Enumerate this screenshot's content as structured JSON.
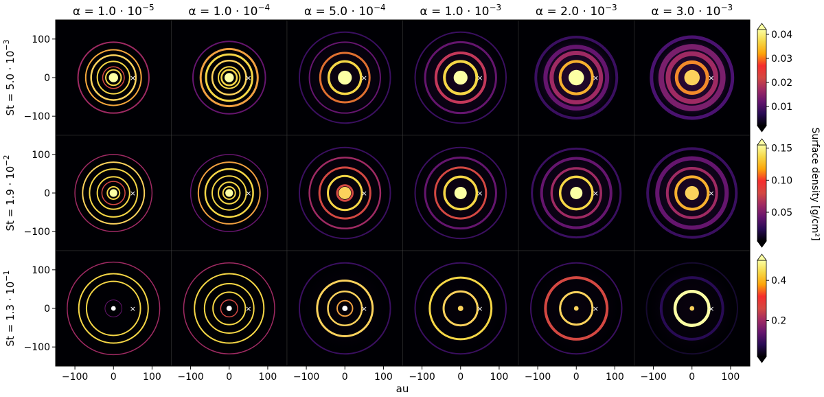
{
  "figure": {
    "column_titles": [
      {
        "base": "α = 1.0 · 10",
        "exp": "−5"
      },
      {
        "base": "α = 1.0 · 10",
        "exp": "−4"
      },
      {
        "base": "α = 5.0 · 10",
        "exp": "−4"
      },
      {
        "base": "α = 1.0 · 10",
        "exp": "−3"
      },
      {
        "base": "α = 2.0 · 10",
        "exp": "−3"
      },
      {
        "base": "α = 3.0 · 10",
        "exp": "−3"
      }
    ],
    "row_titles": [
      {
        "base": "St = 5.0 · 10",
        "exp": "−3"
      },
      {
        "base": "St = 1.9 · 10",
        "exp": "−2"
      },
      {
        "base": "St = 1.3 · 10",
        "exp": "−1"
      }
    ],
    "xlabel": "au",
    "colorbar_label": "Surface density [g/cm²]",
    "planet_marker": "×",
    "colormap": [
      "#000004",
      "#280b54",
      "#65156e",
      "#9f2a63",
      "#d44842",
      "#f52d2d",
      "#fca50a",
      "#f6d746",
      "#fcffa4"
    ]
  },
  "chart_data": {
    "type": "heatmap",
    "description_units": "disk dust surface density maps, axes in au",
    "x_ticks": [
      "−100",
      "0",
      "100"
    ],
    "y_ticks": [
      "100",
      "0",
      "−100"
    ],
    "xlim": [
      -150,
      150
    ],
    "ylim": [
      -150,
      150
    ],
    "planet_position_au": [
      50,
      0
    ],
    "colorbars": [
      {
        "ticks": [
          "0.01",
          "0.02",
          "0.03",
          "0.04"
        ],
        "tick_values": [
          0.01,
          0.02,
          0.03,
          0.04
        ],
        "range": [
          0.002,
          0.042
        ]
      },
      {
        "ticks": [
          "0.05",
          "0.10",
          "0.15"
        ],
        "tick_values": [
          0.05,
          0.1,
          0.15
        ],
        "range": [
          0.005,
          0.155
        ]
      },
      {
        "ticks": [
          "0.2",
          "0.4"
        ],
        "tick_values": [
          0.2,
          0.4
        ],
        "range": [
          0.02,
          0.5
        ]
      }
    ],
    "panels": [
      [
        {
          "core": 12,
          "coreColor": "#fcffa4",
          "rings": [
            [
              20,
              2,
              "#f6d746"
            ],
            [
              28,
              1.5,
              "#d44842"
            ],
            [
              42,
              2,
              "#f6d746"
            ],
            [
              58,
              2.5,
              "#fcd25c"
            ],
            [
              72,
              2,
              "#f6a83c"
            ],
            [
              92,
              2,
              "#9f2a63"
            ]
          ],
          "haze": 0
        },
        {
          "core": 12,
          "coreColor": "#fcffa4",
          "rings": [
            [
              20,
              2.5,
              "#f6d746"
            ],
            [
              28,
              2,
              "#f6d746"
            ],
            [
              44,
              2.5,
              "#fcd25c"
            ],
            [
              60,
              3,
              "#f6d746"
            ],
            [
              74,
              3,
              "#f0a040"
            ],
            [
              94,
              2,
              "#65156e"
            ]
          ],
          "haze": 0
        },
        {
          "core": 18,
          "coreColor": "#fcffa4",
          "rings": [
            [
              42,
              3.5,
              "#f6d746"
            ],
            [
              64,
              3,
              "#e07030"
            ],
            [
              92,
              2,
              "#65156e"
            ],
            [
              118,
              2,
              "#3a0f60"
            ]
          ],
          "haze": 0.15
        },
        {
          "core": 18,
          "coreColor": "#fcffa4",
          "rings": [
            [
              42,
              4,
              "#f6d746"
            ],
            [
              64,
              4,
              "#c4385a"
            ],
            [
              92,
              3,
              "#65156e"
            ],
            [
              118,
              2,
              "#3a0f60"
            ]
          ],
          "haze": 0.25
        },
        {
          "core": 20,
          "coreColor": "#fcffa4",
          "rings": [
            [
              42,
              4,
              "#f7b02e"
            ],
            [
              64,
              6,
              "#9f2a63"
            ],
            [
              80,
              6,
              "#65156e"
            ],
            [
              105,
              4,
              "#3a0f60"
            ]
          ],
          "haze": 0.45
        },
        {
          "core": 20,
          "coreColor": "#fcd25c",
          "rings": [
            [
              40,
              5,
              "#f28a2a"
            ],
            [
              62,
              7,
              "#9f2a63"
            ],
            [
              80,
              8,
              "#7a1f6c"
            ],
            [
              105,
              5,
              "#4a1270"
            ]
          ],
          "haze": 0.55
        }
      ],
      [
        {
          "core": 10,
          "coreColor": "#fcffa4",
          "rings": [
            [
              16,
              2,
              "#f6d746"
            ],
            [
              30,
              1.5,
              "#d44842"
            ],
            [
              42,
              2,
              "#f6d746"
            ],
            [
              62,
              2,
              "#f6d746"
            ],
            [
              80,
              2,
              "#fcd25c"
            ],
            [
              100,
              1.5,
              "#9f2a63"
            ]
          ],
          "haze": 0
        },
        {
          "core": 10,
          "coreColor": "#fcffa4",
          "rings": [
            [
              16,
              2,
              "#f6d746"
            ],
            [
              28,
              2,
              "#f6d746"
            ],
            [
              44,
              2,
              "#f6d746"
            ],
            [
              62,
              2.5,
              "#f6d746"
            ],
            [
              80,
              2,
              "#f0a040"
            ],
            [
              100,
              1.5,
              "#65156e"
            ]
          ],
          "haze": 0
        },
        {
          "core": 16,
          "coreColor": "#fcd25c",
          "rings": [
            [
              20,
              3,
              "#d44842"
            ],
            [
              44,
              3,
              "#f6d746"
            ],
            [
              66,
              3,
              "#d44842"
            ],
            [
              92,
              2.5,
              "#9f2a63"
            ],
            [
              118,
              2,
              "#3a0f60"
            ]
          ],
          "haze": 0.1
        },
        {
          "core": 16,
          "coreColor": "#fcffa4",
          "rings": [
            [
              42,
              3.5,
              "#f6d746"
            ],
            [
              66,
              3,
              "#d44842"
            ],
            [
              92,
              3,
              "#65156e"
            ],
            [
              118,
              2,
              "#3a0f60"
            ]
          ],
          "haze": 0.15
        },
        {
          "core": 16,
          "coreColor": "#fcffa4",
          "rings": [
            [
              42,
              3.5,
              "#f6d746"
            ],
            [
              64,
              3.5,
              "#9f2a63"
            ],
            [
              90,
              4,
              "#65156e"
            ],
            [
              115,
              3,
              "#3a0f60"
            ]
          ],
          "haze": 0.25
        },
        {
          "core": 18,
          "coreColor": "#fcd25c",
          "rings": [
            [
              42,
              4,
              "#f7b02e"
            ],
            [
              64,
              4,
              "#9f2a63"
            ],
            [
              90,
              6,
              "#65156e"
            ],
            [
              115,
              4,
              "#3a0f60"
            ]
          ],
          "haze": 0.35
        }
      ],
      [
        {
          "core": 6,
          "coreColor": "#ffffff",
          "rings": [
            [
              22,
              1,
              "#65156e"
            ],
            [
              70,
              2,
              "#f6d746"
            ],
            [
              90,
              2,
              "#f6d746"
            ],
            [
              120,
              1.5,
              "#9f2a63"
            ]
          ],
          "haze": 0
        },
        {
          "core": 7,
          "coreColor": "#ffffff",
          "rings": [
            [
              22,
              1.5,
              "#d44842"
            ],
            [
              42,
              2,
              "#f6d746"
            ],
            [
              64,
              2,
              "#f6d746"
            ],
            [
              90,
              2,
              "#f6d746"
            ],
            [
              118,
              1.5,
              "#9f2a63"
            ]
          ],
          "haze": 0
        },
        {
          "core": 7,
          "coreColor": "#ffffff",
          "rings": [
            [
              20,
              2,
              "#f0a040"
            ],
            [
              44,
              2.5,
              "#fcd25c"
            ],
            [
              72,
              3,
              "#fcd25c"
            ],
            [
              118,
              2,
              "#3a0f60"
            ]
          ],
          "haze": 0.05
        },
        {
          "core": 7,
          "coreColor": "#fcd25c",
          "rings": [
            [
              44,
              3,
              "#fcd25c"
            ],
            [
              80,
              3,
              "#f6d746"
            ],
            [
              118,
              2,
              "#3a0f60"
            ]
          ],
          "haze": 0.05
        },
        {
          "core": 6,
          "coreColor": "#fcd25c",
          "rings": [
            [
              42,
              3,
              "#fcd25c"
            ],
            [
              80,
              4,
              "#d44842"
            ],
            [
              118,
              2,
              "#3a0f60"
            ]
          ],
          "haze": 0.08
        },
        {
          "core": 6,
          "coreColor": "#fcd25c",
          "rings": [
            [
              44,
              4.5,
              "#fcffa4"
            ],
            [
              80,
              4,
              "#280b54"
            ],
            [
              118,
              2,
              "#160a30"
            ]
          ],
          "haze": 0.1
        }
      ]
    ]
  }
}
